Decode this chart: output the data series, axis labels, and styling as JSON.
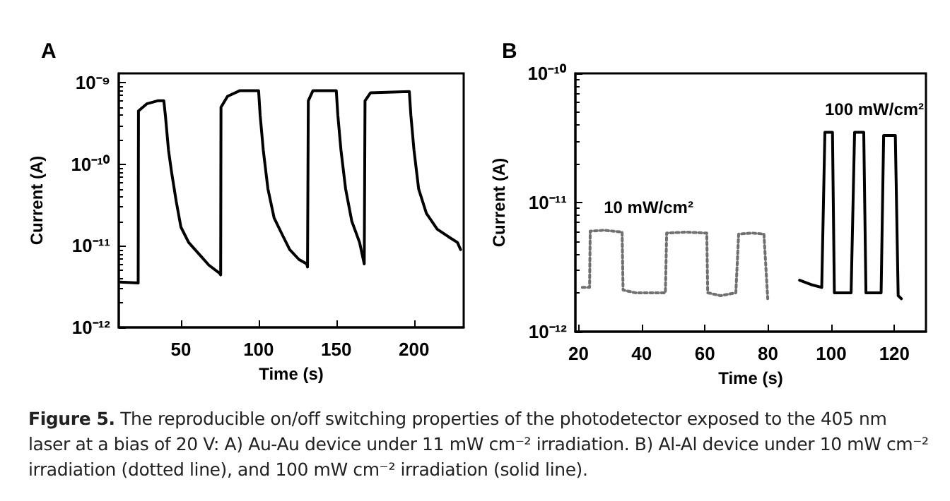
{
  "chart_data": [
    {
      "type": "line",
      "title": "A",
      "xlabel": "Time (s)",
      "ylabel": "Current (A)",
      "log": "y",
      "marker": "none",
      "xlim": [
        10,
        232
      ],
      "xticks": [
        50,
        100,
        150,
        200
      ],
      "ylim": [
        1e-12,
        1.3e-09
      ],
      "yticks": [
        {
          "value": 1e-12,
          "label": "10⁻¹²"
        },
        {
          "value": 1e-11,
          "label": "10⁻¹¹"
        },
        {
          "value": 1e-10,
          "label": "10⁻¹⁰"
        },
        {
          "value": 1e-09,
          "label": "10⁻⁹"
        }
      ],
      "series": [
        {
          "color": "#000000",
          "line_style": "solid",
          "x": [
            11,
            22.5,
            22.7,
            28,
            35,
            39,
            40,
            42,
            44,
            47,
            50,
            55,
            62,
            68,
            75,
            75.6,
            75.8,
            80,
            88,
            100,
            101,
            103,
            106,
            110,
            115,
            120,
            126,
            131,
            131.5,
            132,
            135,
            150,
            151,
            153,
            156,
            160,
            165,
            168,
            168.5,
            172,
            197,
            198,
            200,
            203,
            208,
            215,
            222,
            228,
            230
          ],
          "values": [
            3.6e-12,
            3.5e-12,
            4.5e-10,
            5.5e-10,
            6e-10,
            6e-10,
            4e-10,
            1.5e-10,
            8e-11,
            3.5e-11,
            1.7e-11,
            1.1e-11,
            7.8e-12,
            5.8e-12,
            4.6e-12,
            4.4e-12,
            5e-10,
            6.8e-10,
            8e-10,
            8e-10,
            4e-10,
            1.5e-10,
            5e-11,
            2.2e-11,
            1.4e-11,
            9e-12,
            6.8e-12,
            6e-12,
            5.5e-12,
            6e-10,
            8e-10,
            8e-10,
            4e-10,
            1.5e-10,
            5e-11,
            2e-11,
            1.1e-11,
            6e-12,
            6e-10,
            7.5e-10,
            7.8e-10,
            4e-10,
            1.5e-10,
            5e-11,
            2.5e-11,
            1.6e-11,
            1.3e-11,
            1.1e-11,
            9e-12
          ]
        }
      ],
      "annotations": [
        "Figure 5. The reproducible on/off switching properties of the photodetector exposed to the 405 nm laser at a bias of 20 V: A) Au-Au device under 11 mW cm⁻² irradiation. B) Al-Al device under 10 mW cm⁻² irradiation (dotted line), and 100 mW cm⁻² irradiation (solid line)."
      ]
    },
    {
      "type": "line",
      "title": "B",
      "xlabel": "Time (s)",
      "ylabel": "Current (A)",
      "log": "y",
      "marker": "none",
      "xlim": [
        19,
        130
      ],
      "xticks": [
        20,
        40,
        60,
        80,
        100,
        120
      ],
      "ylim": [
        1e-12,
        1e-10
      ],
      "yticks": [
        {
          "value": 1e-12,
          "label": "10⁻¹²"
        },
        {
          "value": 1e-11,
          "label": "10⁻¹¹"
        },
        {
          "value": 1e-10,
          "label": "10⁻¹⁰"
        }
      ],
      "series": [
        {
          "name": "10 mW/cm²",
          "color": "#707070",
          "line_style": "dotted",
          "x": [
            21.2,
            23.5,
            23.7,
            28,
            33.8,
            34.1,
            38,
            42,
            47.5,
            47.9,
            54,
            60.6,
            60.9,
            65,
            69.8,
            70.7,
            75,
            78.7,
            79.9
          ],
          "values": [
            2.2e-12,
            2.2e-12,
            6e-12,
            6.1e-12,
            5.9e-12,
            2.1e-12,
            2e-12,
            2e-12,
            2e-12,
            5.8e-12,
            5.9e-12,
            5.8e-12,
            2e-12,
            1.9e-12,
            2e-12,
            5.7e-12,
            5.8e-12,
            5.7e-12,
            1.8e-12
          ]
        },
        {
          "name": "100 mW/cm²",
          "color": "#000000",
          "line_style": "solid",
          "x": [
            90,
            94,
            97,
            98,
            100.4,
            101,
            106.3,
            107.4,
            110.3,
            111,
            115.8,
            116.6,
            120.3,
            121.2,
            122.2
          ],
          "values": [
            2.5e-12,
            2.3e-12,
            2.2e-12,
            3.5e-11,
            3.5e-11,
            2e-12,
            2e-12,
            3.5e-11,
            3.5e-11,
            2e-12,
            2e-12,
            3.3e-11,
            3.3e-11,
            1.9e-12,
            1.8e-12
          ]
        }
      ]
    }
  ]
}
